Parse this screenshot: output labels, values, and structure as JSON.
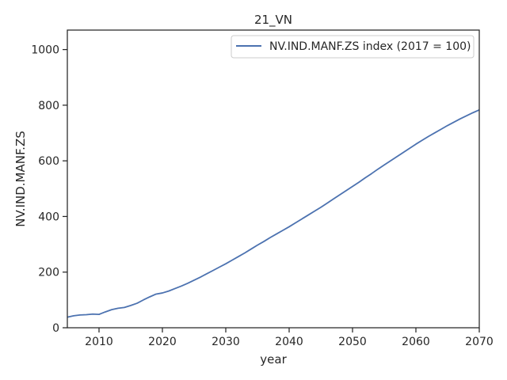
{
  "chart_data": {
    "type": "line",
    "title": "21_VN",
    "xlabel": "year",
    "ylabel": "NV.IND.MANF.ZS",
    "xlim": [
      2005,
      2070
    ],
    "ylim": [
      0,
      1070
    ],
    "xticks": [
      2010,
      2020,
      2030,
      2040,
      2050,
      2060,
      2070
    ],
    "yticks": [
      0,
      200,
      400,
      600,
      800,
      1000
    ],
    "grid": false,
    "legend_position": "top-right",
    "series": [
      {
        "name": "NV.IND.MANF.ZS index (2017 = 100)",
        "color": "#4c72b0",
        "x": [
          2005,
          2006,
          2007,
          2008,
          2009,
          2010,
          2011,
          2012,
          2013,
          2014,
          2015,
          2016,
          2017,
          2018,
          2019,
          2020,
          2021,
          2022,
          2023,
          2024,
          2025,
          2026,
          2027,
          2028,
          2029,
          2030,
          2031,
          2032,
          2033,
          2034,
          2035,
          2036,
          2037,
          2038,
          2039,
          2040,
          2041,
          2042,
          2043,
          2044,
          2045,
          2046,
          2047,
          2048,
          2049,
          2050,
          2051,
          2052,
          2053,
          2054,
          2055,
          2056,
          2057,
          2058,
          2059,
          2060,
          2061,
          2062,
          2063,
          2064,
          2065,
          2066,
          2067,
          2068,
          2069,
          2070
        ],
        "y": [
          38,
          43,
          46,
          47,
          49,
          48,
          57,
          65,
          70,
          73,
          80,
          88,
          100,
          111,
          121,
          125,
          132,
          141,
          150,
          160,
          171,
          182,
          194,
          206,
          218,
          230,
          243,
          256,
          269,
          283,
          297,
          310,
          324,
          337,
          350,
          363,
          377,
          391,
          405,
          419,
          433,
          448,
          463,
          478,
          493,
          508,
          523,
          539,
          554,
          570,
          585,
          600,
          615,
          630,
          645,
          660,
          674,
          688,
          701,
          714,
          727,
          739,
          751,
          762,
          773,
          783
        ]
      }
    ]
  }
}
